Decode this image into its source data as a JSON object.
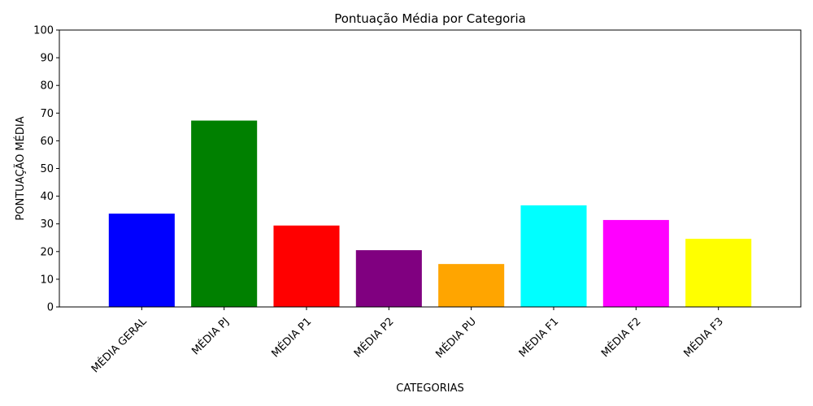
{
  "chart_data": {
    "type": "bar",
    "title": "Pontuação Média por Categoria",
    "xlabel": "CATEGORIAS",
    "ylabel": "PONTUAÇÃO MÉDIA",
    "categories": [
      "MÉDIA GERAL",
      "MÉDIA PJ",
      "MÉDIA P1",
      "MÉDIA P2",
      "MÉDIA PU",
      "MÉDIA F1",
      "MÉDIA F2",
      "MÉDIA F3"
    ],
    "values": [
      33.7,
      67.3,
      29.4,
      20.5,
      15.5,
      36.7,
      31.4,
      24.6
    ],
    "colors": [
      "#0000ff",
      "#008000",
      "#ff0000",
      "#800080",
      "#ffa500",
      "#00ffff",
      "#ff00ff",
      "#ffff00"
    ],
    "ylim": [
      0,
      100
    ],
    "yticks": [
      0,
      10,
      20,
      30,
      40,
      50,
      60,
      70,
      80,
      90,
      100
    ],
    "grid": false,
    "legend": "none"
  }
}
